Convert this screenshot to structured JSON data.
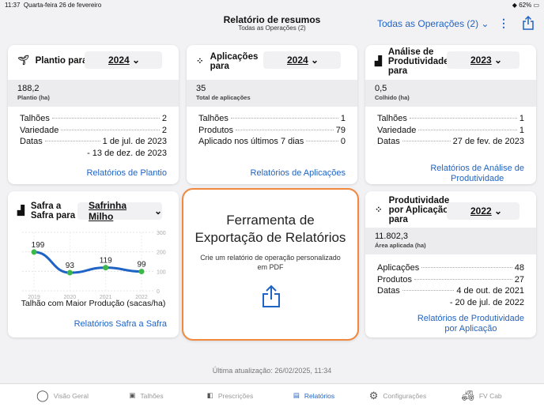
{
  "status": {
    "time": "11:37",
    "date": "Quarta-feira 26 de fevereiro",
    "battery": "62%"
  },
  "header": {
    "title": "Relatório de resumos",
    "subtitle": "Todas as Operações (2)",
    "operations": "Todas as Operações (2)"
  },
  "colors": {
    "accent": "#1f63c4",
    "highlight": "#f0883e",
    "line": "#1f63c4",
    "point": "#3cb84a"
  },
  "cards": {
    "plantio": {
      "title": "Plantio para",
      "year": "2024",
      "value": "188,2",
      "value_label": "Plantio (ha)",
      "rows": [
        {
          "k": "Talhões",
          "v": "2"
        },
        {
          "k": "Variedade",
          "v": "2"
        },
        {
          "k": "Datas",
          "v": "1 de jul. de 2023"
        }
      ],
      "dates2": "- 13 de dez. de 2023",
      "link": "Relatórios de Plantio"
    },
    "aplicacoes": {
      "title1": "Aplicações",
      "title2": "para",
      "year": "2024",
      "value": "35",
      "value_label": "Total de aplicações",
      "rows": [
        {
          "k": "Talhões",
          "v": "1"
        },
        {
          "k": "Produtos",
          "v": "79"
        },
        {
          "k": "Aplicado nos últimos 7 dias",
          "v": "0"
        }
      ],
      "link": "Relatórios de Aplicações"
    },
    "analise": {
      "title1": "Análise de",
      "title2": "Produtividade",
      "title3": "para",
      "year": "2023",
      "value": "0,5",
      "value_label": "Colhido (ha)",
      "rows": [
        {
          "k": "Talhões",
          "v": "1"
        },
        {
          "k": "Variedade",
          "v": "1"
        },
        {
          "k": "Datas",
          "v": "27 de fev. de 2023"
        }
      ],
      "link1": "Relatórios de Análise de",
      "link2": "Produtividade"
    },
    "safra": {
      "title1": "Safra a",
      "title2": "Safra para",
      "crop": "Safrinha Milho",
      "caption": "Talhão com Maior Produção (sacas/ha)",
      "link": "Relatórios Safra a Safra"
    },
    "export": {
      "title1": "Ferramenta de",
      "title2": "Exportação de Relatórios",
      "desc1": "Crie um relatório de operação personalizado",
      "desc2": "em PDF"
    },
    "prodapl": {
      "title1": "Produtividade",
      "title2": "por Aplicação",
      "title3": "para",
      "year": "2022",
      "value": "11.802,3",
      "value_label": "Área aplicada (ha)",
      "rows": [
        {
          "k": "Aplicações",
          "v": "48"
        },
        {
          "k": "Produtos",
          "v": "27"
        },
        {
          "k": "Datas",
          "v": "4 de out. de 2021"
        }
      ],
      "dates2": "- 20 de jul. de 2022",
      "link1": "Relatórios de Produtividade",
      "link2": "por Aplicação"
    }
  },
  "chart_data": {
    "type": "line",
    "categories": [
      "2019",
      "2020",
      "2021",
      "2022"
    ],
    "values": [
      199,
      93,
      119,
      99
    ],
    "ylim": [
      0,
      300
    ],
    "yticks": [
      "0",
      "100",
      "200",
      "300"
    ],
    "xlabel": "Talhão com Maior Produção (sacas/ha)",
    "grid": true
  },
  "footer": {
    "updated": "Última atualização: 26/02/2025, 11:34"
  },
  "tabs": [
    {
      "label": "Visão Geral",
      "icon": "circle-icon"
    },
    {
      "label": "Talhões",
      "icon": "field-icon"
    },
    {
      "label": "Prescrições",
      "icon": "prescription-icon"
    },
    {
      "label": "Relatórios",
      "icon": "document-icon",
      "active": true
    },
    {
      "label": "Configurações",
      "icon": "gear-icon"
    },
    {
      "label": "FV Cab",
      "icon": "tractor-icon"
    }
  ]
}
